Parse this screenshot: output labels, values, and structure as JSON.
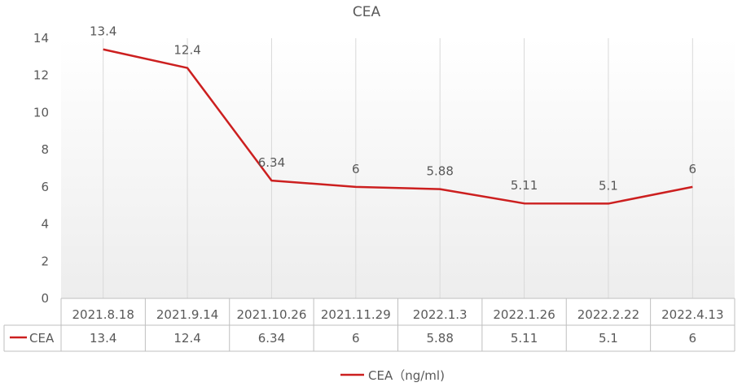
{
  "chart_data": {
    "type": "line",
    "title": "CEA",
    "categories": [
      "2021.8.18",
      "2021.9.14",
      "2021.10.26",
      "2021.11.29",
      "2022.1.3",
      "2022.1.26",
      "2022.2.22",
      "2022.4.13"
    ],
    "series": [
      {
        "name": "CEA",
        "values": [
          13.4,
          12.4,
          6.34,
          6,
          5.88,
          5.11,
          5.1,
          6
        ],
        "labels": [
          "13.4",
          "12.4",
          "6.34",
          "6",
          "5.88",
          "5.11",
          "5.1",
          "6"
        ],
        "color": "#cc1f1f"
      }
    ],
    "ylim": [
      0,
      14
    ],
    "yticks": [
      "0",
      "2",
      "4",
      "6",
      "8",
      "10",
      "12",
      "14"
    ],
    "grid": "vertical",
    "data_table": true,
    "legend": {
      "position": "bottom",
      "label": "CEA（ng/ml)"
    }
  }
}
